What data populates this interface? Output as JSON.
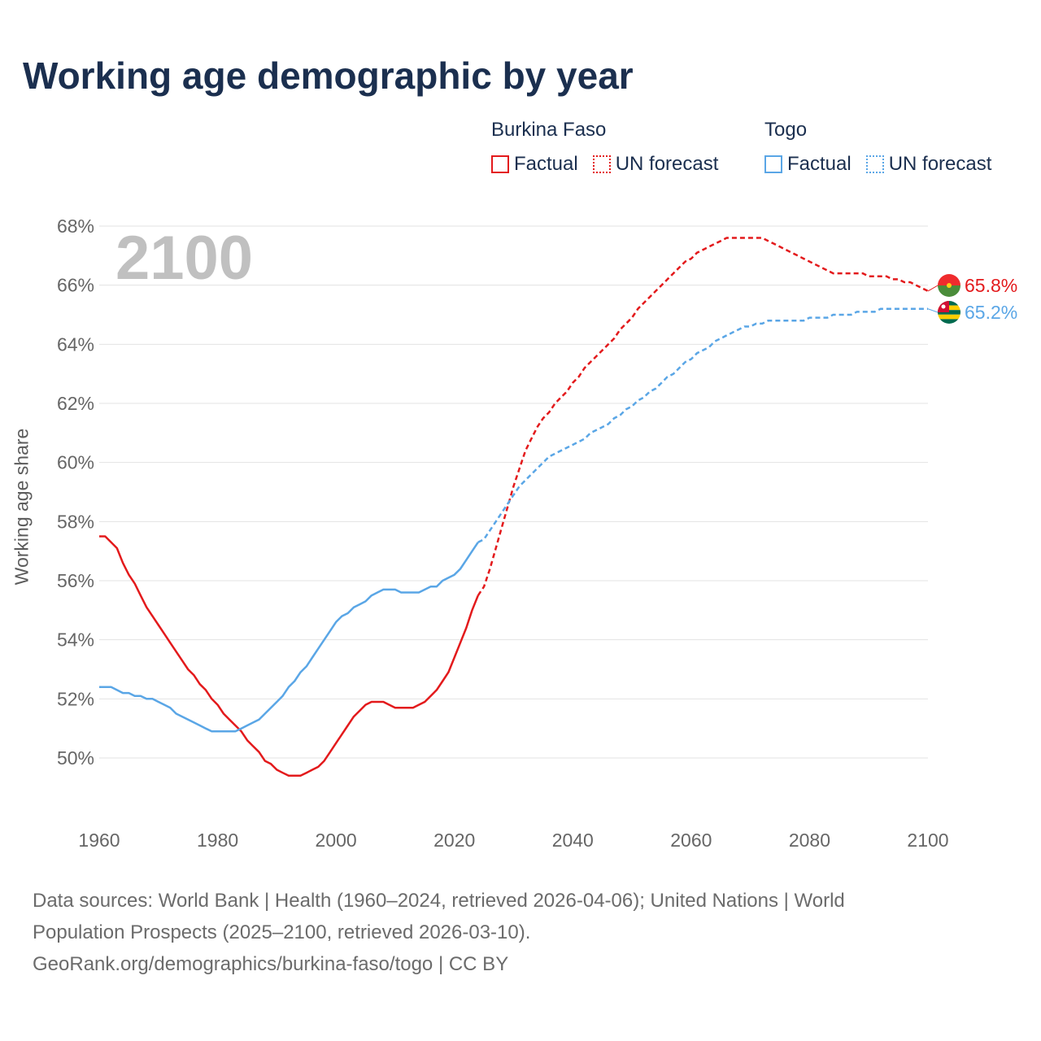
{
  "title": "Working age demographic by year",
  "legend": {
    "groups": [
      {
        "country": "Burkina Faso",
        "color": "#e31a1c",
        "factual_label": "Factual",
        "forecast_label": "UN forecast"
      },
      {
        "country": "Togo",
        "color": "#5aa6e6",
        "factual_label": "Factual",
        "forecast_label": "UN forecast"
      }
    ]
  },
  "year_watermark": "2100",
  "footer": {
    "line1": "Data sources: World Bank | Health (1960–2024, retrieved 2026-04-06); United Nations | World",
    "line2": "Population Prospects (2025–2100, retrieved 2026-03-10).",
    "line3": "GeoRank.org/demographics/burkina-faso/togo | CC BY"
  },
  "chart_data": {
    "type": "line",
    "title": "Working age demographic by year",
    "xlabel": "",
    "ylabel": "Working age share",
    "xlim": [
      1960,
      2100
    ],
    "ylim": [
      48,
      68
    ],
    "x_ticks": [
      1960,
      1980,
      2000,
      2020,
      2040,
      2060,
      2080,
      2100
    ],
    "y_ticks": [
      50,
      52,
      54,
      56,
      58,
      60,
      62,
      64,
      66,
      68
    ],
    "y_tick_suffix": "%",
    "factual_end_year": 2024,
    "series": [
      {
        "name": "Burkina Faso",
        "color": "#e31a1c",
        "end_label": "65.8%",
        "points": [
          [
            1960,
            57.5
          ],
          [
            1961,
            57.5
          ],
          [
            1962,
            57.3
          ],
          [
            1963,
            57.1
          ],
          [
            1964,
            56.6
          ],
          [
            1965,
            56.2
          ],
          [
            1966,
            55.9
          ],
          [
            1967,
            55.5
          ],
          [
            1968,
            55.1
          ],
          [
            1969,
            54.8
          ],
          [
            1970,
            54.5
          ],
          [
            1971,
            54.2
          ],
          [
            1972,
            53.9
          ],
          [
            1973,
            53.6
          ],
          [
            1974,
            53.3
          ],
          [
            1975,
            53.0
          ],
          [
            1976,
            52.8
          ],
          [
            1977,
            52.5
          ],
          [
            1978,
            52.3
          ],
          [
            1979,
            52.0
          ],
          [
            1980,
            51.8
          ],
          [
            1981,
            51.5
          ],
          [
            1982,
            51.3
          ],
          [
            1983,
            51.1
          ],
          [
            1984,
            50.9
          ],
          [
            1985,
            50.6
          ],
          [
            1986,
            50.4
          ],
          [
            1987,
            50.2
          ],
          [
            1988,
            49.9
          ],
          [
            1989,
            49.8
          ],
          [
            1990,
            49.6
          ],
          [
            1991,
            49.5
          ],
          [
            1992,
            49.4
          ],
          [
            1993,
            49.4
          ],
          [
            1994,
            49.4
          ],
          [
            1995,
            49.5
          ],
          [
            1996,
            49.6
          ],
          [
            1997,
            49.7
          ],
          [
            1998,
            49.9
          ],
          [
            1999,
            50.2
          ],
          [
            2000,
            50.5
          ],
          [
            2001,
            50.8
          ],
          [
            2002,
            51.1
          ],
          [
            2003,
            51.4
          ],
          [
            2004,
            51.6
          ],
          [
            2005,
            51.8
          ],
          [
            2006,
            51.9
          ],
          [
            2007,
            51.9
          ],
          [
            2008,
            51.9
          ],
          [
            2009,
            51.8
          ],
          [
            2010,
            51.7
          ],
          [
            2011,
            51.7
          ],
          [
            2012,
            51.7
          ],
          [
            2013,
            51.7
          ],
          [
            2014,
            51.8
          ],
          [
            2015,
            51.9
          ],
          [
            2016,
            52.1
          ],
          [
            2017,
            52.3
          ],
          [
            2018,
            52.6
          ],
          [
            2019,
            52.9
          ],
          [
            2020,
            53.4
          ],
          [
            2021,
            53.9
          ],
          [
            2022,
            54.4
          ],
          [
            2023,
            55.0
          ],
          [
            2024,
            55.5
          ],
          [
            2025,
            55.8
          ],
          [
            2026,
            56.4
          ],
          [
            2027,
            57.1
          ],
          [
            2028,
            57.8
          ],
          [
            2029,
            58.5
          ],
          [
            2030,
            59.2
          ],
          [
            2031,
            59.8
          ],
          [
            2032,
            60.4
          ],
          [
            2033,
            60.8
          ],
          [
            2034,
            61.2
          ],
          [
            2035,
            61.5
          ],
          [
            2036,
            61.7
          ],
          [
            2037,
            62.0
          ],
          [
            2038,
            62.2
          ],
          [
            2039,
            62.4
          ],
          [
            2040,
            62.7
          ],
          [
            2041,
            62.9
          ],
          [
            2042,
            63.2
          ],
          [
            2043,
            63.4
          ],
          [
            2044,
            63.6
          ],
          [
            2045,
            63.8
          ],
          [
            2046,
            64.0
          ],
          [
            2047,
            64.2
          ],
          [
            2048,
            64.5
          ],
          [
            2049,
            64.7
          ],
          [
            2050,
            64.9
          ],
          [
            2051,
            65.2
          ],
          [
            2052,
            65.4
          ],
          [
            2053,
            65.6
          ],
          [
            2054,
            65.8
          ],
          [
            2055,
            66.0
          ],
          [
            2056,
            66.2
          ],
          [
            2057,
            66.4
          ],
          [
            2058,
            66.6
          ],
          [
            2059,
            66.8
          ],
          [
            2060,
            66.9
          ],
          [
            2061,
            67.1
          ],
          [
            2062,
            67.2
          ],
          [
            2063,
            67.3
          ],
          [
            2064,
            67.4
          ],
          [
            2065,
            67.5
          ],
          [
            2066,
            67.6
          ],
          [
            2067,
            67.6
          ],
          [
            2068,
            67.6
          ],
          [
            2069,
            67.6
          ],
          [
            2070,
            67.6
          ],
          [
            2071,
            67.6
          ],
          [
            2072,
            67.6
          ],
          [
            2073,
            67.5
          ],
          [
            2074,
            67.4
          ],
          [
            2075,
            67.3
          ],
          [
            2076,
            67.2
          ],
          [
            2077,
            67.1
          ],
          [
            2078,
            67.0
          ],
          [
            2079,
            66.9
          ],
          [
            2080,
            66.8
          ],
          [
            2081,
            66.7
          ],
          [
            2082,
            66.6
          ],
          [
            2083,
            66.5
          ],
          [
            2084,
            66.4
          ],
          [
            2085,
            66.4
          ],
          [
            2086,
            66.4
          ],
          [
            2087,
            66.4
          ],
          [
            2088,
            66.4
          ],
          [
            2089,
            66.4
          ],
          [
            2090,
            66.3
          ],
          [
            2091,
            66.3
          ],
          [
            2092,
            66.3
          ],
          [
            2093,
            66.3
          ],
          [
            2094,
            66.2
          ],
          [
            2095,
            66.2
          ],
          [
            2096,
            66.1
          ],
          [
            2097,
            66.1
          ],
          [
            2098,
            66.0
          ],
          [
            2099,
            65.9
          ],
          [
            2100,
            65.8
          ]
        ]
      },
      {
        "name": "Togo",
        "color": "#5aa6e6",
        "end_label": "65.2%",
        "points": [
          [
            1960,
            52.4
          ],
          [
            1961,
            52.4
          ],
          [
            1962,
            52.4
          ],
          [
            1963,
            52.3
          ],
          [
            1964,
            52.2
          ],
          [
            1965,
            52.2
          ],
          [
            1966,
            52.1
          ],
          [
            1967,
            52.1
          ],
          [
            1968,
            52.0
          ],
          [
            1969,
            52.0
          ],
          [
            1970,
            51.9
          ],
          [
            1971,
            51.8
          ],
          [
            1972,
            51.7
          ],
          [
            1973,
            51.5
          ],
          [
            1974,
            51.4
          ],
          [
            1975,
            51.3
          ],
          [
            1976,
            51.2
          ],
          [
            1977,
            51.1
          ],
          [
            1978,
            51.0
          ],
          [
            1979,
            50.9
          ],
          [
            1980,
            50.9
          ],
          [
            1981,
            50.9
          ],
          [
            1982,
            50.9
          ],
          [
            1983,
            50.9
          ],
          [
            1984,
            51.0
          ],
          [
            1985,
            51.1
          ],
          [
            1986,
            51.2
          ],
          [
            1987,
            51.3
          ],
          [
            1988,
            51.5
          ],
          [
            1989,
            51.7
          ],
          [
            1990,
            51.9
          ],
          [
            1991,
            52.1
          ],
          [
            1992,
            52.4
          ],
          [
            1993,
            52.6
          ],
          [
            1994,
            52.9
          ],
          [
            1995,
            53.1
          ],
          [
            1996,
            53.4
          ],
          [
            1997,
            53.7
          ],
          [
            1998,
            54.0
          ],
          [
            1999,
            54.3
          ],
          [
            2000,
            54.6
          ],
          [
            2001,
            54.8
          ],
          [
            2002,
            54.9
          ],
          [
            2003,
            55.1
          ],
          [
            2004,
            55.2
          ],
          [
            2005,
            55.3
          ],
          [
            2006,
            55.5
          ],
          [
            2007,
            55.6
          ],
          [
            2008,
            55.7
          ],
          [
            2009,
            55.7
          ],
          [
            2010,
            55.7
          ],
          [
            2011,
            55.6
          ],
          [
            2012,
            55.6
          ],
          [
            2013,
            55.6
          ],
          [
            2014,
            55.6
          ],
          [
            2015,
            55.7
          ],
          [
            2016,
            55.8
          ],
          [
            2017,
            55.8
          ],
          [
            2018,
            56.0
          ],
          [
            2019,
            56.1
          ],
          [
            2020,
            56.2
          ],
          [
            2021,
            56.4
          ],
          [
            2022,
            56.7
          ],
          [
            2023,
            57.0
          ],
          [
            2024,
            57.3
          ],
          [
            2025,
            57.4
          ],
          [
            2026,
            57.7
          ],
          [
            2027,
            58.0
          ],
          [
            2028,
            58.3
          ],
          [
            2029,
            58.6
          ],
          [
            2030,
            58.9
          ],
          [
            2031,
            59.2
          ],
          [
            2032,
            59.4
          ],
          [
            2033,
            59.6
          ],
          [
            2034,
            59.8
          ],
          [
            2035,
            60.0
          ],
          [
            2036,
            60.2
          ],
          [
            2037,
            60.3
          ],
          [
            2038,
            60.4
          ],
          [
            2039,
            60.5
          ],
          [
            2040,
            60.6
          ],
          [
            2041,
            60.7
          ],
          [
            2042,
            60.8
          ],
          [
            2043,
            61.0
          ],
          [
            2044,
            61.1
          ],
          [
            2045,
            61.2
          ],
          [
            2046,
            61.3
          ],
          [
            2047,
            61.5
          ],
          [
            2048,
            61.6
          ],
          [
            2049,
            61.8
          ],
          [
            2050,
            61.9
          ],
          [
            2051,
            62.1
          ],
          [
            2052,
            62.2
          ],
          [
            2053,
            62.4
          ],
          [
            2054,
            62.5
          ],
          [
            2055,
            62.7
          ],
          [
            2056,
            62.9
          ],
          [
            2057,
            63.0
          ],
          [
            2058,
            63.2
          ],
          [
            2059,
            63.4
          ],
          [
            2060,
            63.5
          ],
          [
            2061,
            63.7
          ],
          [
            2062,
            63.8
          ],
          [
            2063,
            63.9
          ],
          [
            2064,
            64.1
          ],
          [
            2065,
            64.2
          ],
          [
            2066,
            64.3
          ],
          [
            2067,
            64.4
          ],
          [
            2068,
            64.5
          ],
          [
            2069,
            64.6
          ],
          [
            2070,
            64.6
          ],
          [
            2071,
            64.7
          ],
          [
            2072,
            64.7
          ],
          [
            2073,
            64.8
          ],
          [
            2074,
            64.8
          ],
          [
            2075,
            64.8
          ],
          [
            2076,
            64.8
          ],
          [
            2077,
            64.8
          ],
          [
            2078,
            64.8
          ],
          [
            2079,
            64.8
          ],
          [
            2080,
            64.9
          ],
          [
            2081,
            64.9
          ],
          [
            2082,
            64.9
          ],
          [
            2083,
            64.9
          ],
          [
            2084,
            65.0
          ],
          [
            2085,
            65.0
          ],
          [
            2086,
            65.0
          ],
          [
            2087,
            65.0
          ],
          [
            2088,
            65.1
          ],
          [
            2089,
            65.1
          ],
          [
            2090,
            65.1
          ],
          [
            2091,
            65.1
          ],
          [
            2092,
            65.2
          ],
          [
            2093,
            65.2
          ],
          [
            2094,
            65.2
          ],
          [
            2095,
            65.2
          ],
          [
            2096,
            65.2
          ],
          [
            2097,
            65.2
          ],
          [
            2098,
            65.2
          ],
          [
            2099,
            65.2
          ],
          [
            2100,
            65.2
          ]
        ]
      }
    ]
  }
}
